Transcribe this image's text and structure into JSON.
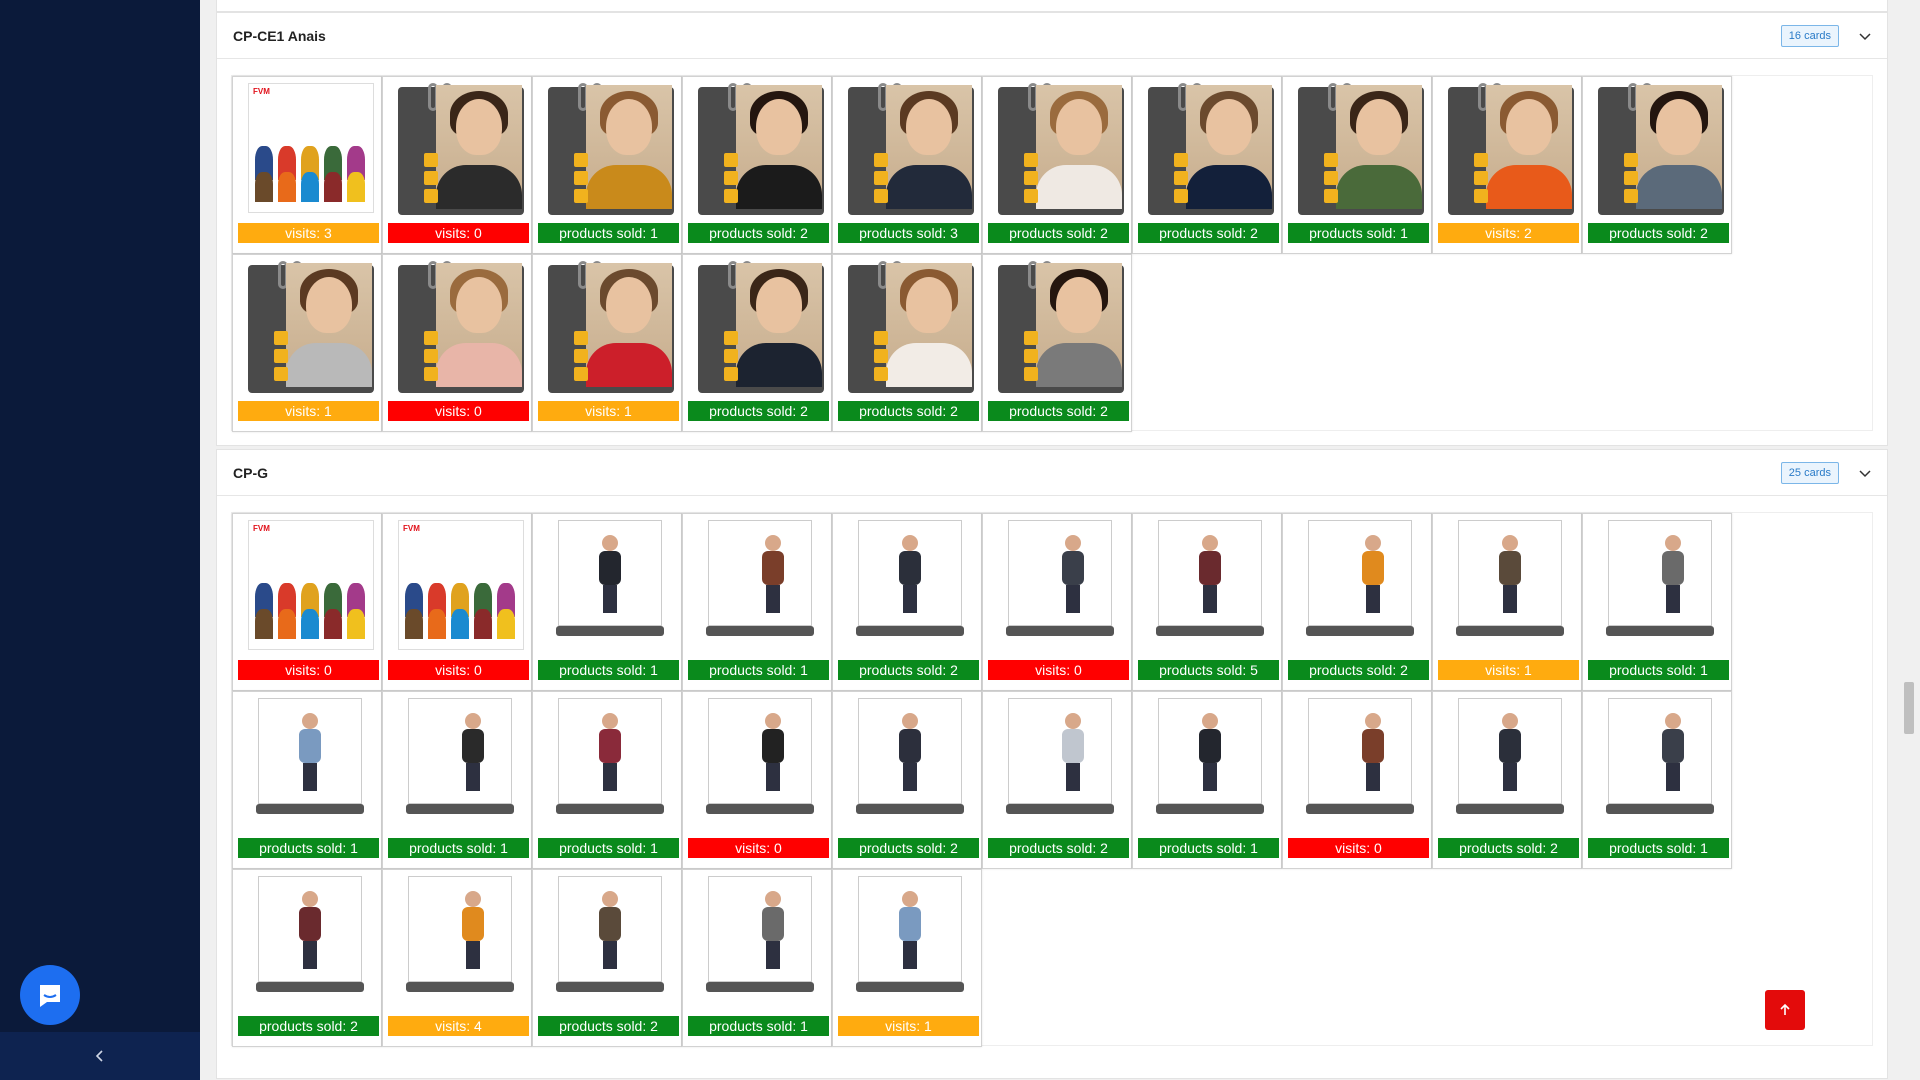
{
  "sidebar": {
    "collapse_icon": "chevron-left-icon",
    "chat_icon": "chat-icon"
  },
  "sections": [
    {
      "title": "CP-CE1 Anais",
      "badge": "16 cards",
      "cards": [
        {
          "kind": "group",
          "status": "visits: 3",
          "color": "orange"
        },
        {
          "kind": "portrait",
          "status": "visits: 0",
          "color": "red"
        },
        {
          "kind": "portrait",
          "status": "products sold: 1",
          "color": "green"
        },
        {
          "kind": "portrait",
          "status": "products sold: 2",
          "color": "green"
        },
        {
          "kind": "portrait",
          "status": "products sold: 3",
          "color": "green"
        },
        {
          "kind": "portrait",
          "status": "products sold: 2",
          "color": "green"
        },
        {
          "kind": "portrait",
          "status": "products sold: 2",
          "color": "green"
        },
        {
          "kind": "portrait",
          "status": "products sold: 1",
          "color": "green"
        },
        {
          "kind": "portrait",
          "status": "visits: 2",
          "color": "orange"
        },
        {
          "kind": "portrait",
          "status": "products sold: 2",
          "color": "green"
        },
        {
          "kind": "portrait",
          "status": "visits: 1",
          "color": "orange"
        },
        {
          "kind": "portrait",
          "status": "visits: 0",
          "color": "red"
        },
        {
          "kind": "portrait",
          "status": "visits: 1",
          "color": "orange"
        },
        {
          "kind": "portrait",
          "status": "products sold: 2",
          "color": "green"
        },
        {
          "kind": "portrait",
          "status": "products sold: 2",
          "color": "green"
        },
        {
          "kind": "portrait",
          "status": "products sold: 2",
          "color": "green"
        }
      ]
    },
    {
      "title": "CP-G",
      "badge": "25 cards",
      "cards": [
        {
          "kind": "group",
          "status": "visits: 0",
          "color": "red"
        },
        {
          "kind": "group",
          "status": "visits: 0",
          "color": "red"
        },
        {
          "kind": "full",
          "status": "products sold: 1",
          "color": "green"
        },
        {
          "kind": "full",
          "status": "products sold: 1",
          "color": "green"
        },
        {
          "kind": "full",
          "status": "products sold: 2",
          "color": "green"
        },
        {
          "kind": "full",
          "status": "visits: 0",
          "color": "red"
        },
        {
          "kind": "full",
          "status": "products sold: 5",
          "color": "green"
        },
        {
          "kind": "full",
          "status": "products sold: 2",
          "color": "green"
        },
        {
          "kind": "full",
          "status": "visits: 1",
          "color": "orange"
        },
        {
          "kind": "full",
          "status": "products sold: 1",
          "color": "green"
        },
        {
          "kind": "full",
          "status": "products sold: 1",
          "color": "green"
        },
        {
          "kind": "full",
          "status": "products sold: 1",
          "color": "green"
        },
        {
          "kind": "full",
          "status": "products sold: 1",
          "color": "green"
        },
        {
          "kind": "full",
          "status": "visits: 0",
          "color": "red"
        },
        {
          "kind": "full",
          "status": "products sold: 2",
          "color": "green"
        },
        {
          "kind": "full",
          "status": "products sold: 2",
          "color": "green"
        },
        {
          "kind": "full",
          "status": "products sold: 1",
          "color": "green"
        },
        {
          "kind": "full",
          "status": "visits: 0",
          "color": "red"
        },
        {
          "kind": "full",
          "status": "products sold: 2",
          "color": "green"
        },
        {
          "kind": "full",
          "status": "products sold: 1",
          "color": "green"
        },
        {
          "kind": "full",
          "status": "products sold: 2",
          "color": "green"
        },
        {
          "kind": "full",
          "status": "visits: 4",
          "color": "orange"
        },
        {
          "kind": "full",
          "status": "products sold: 2",
          "color": "green"
        },
        {
          "kind": "full",
          "status": "products sold: 1",
          "color": "green"
        },
        {
          "kind": "full",
          "status": "visits: 1",
          "color": "orange"
        }
      ]
    }
  ],
  "status_colors": {
    "red": "#ff0000",
    "orange": "#ffab0f",
    "green": "#0a8a1c"
  },
  "scroll_top_icon": "arrow-up-icon"
}
